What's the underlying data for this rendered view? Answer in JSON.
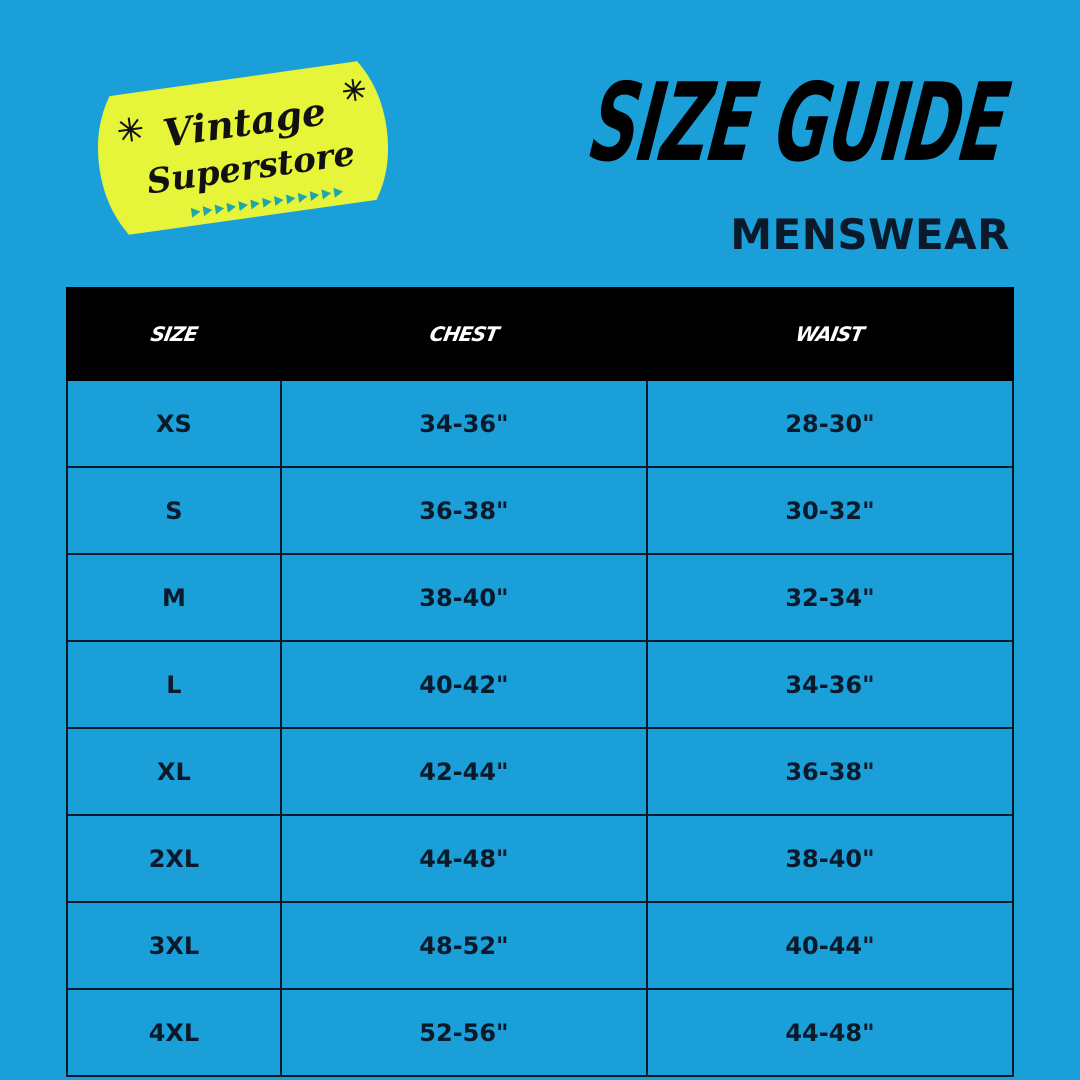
{
  "logo": {
    "text_line1": "Vintage",
    "text_line2": "Superstore",
    "color": "#e6f53a"
  },
  "header": {
    "title": "SIZE GUIDE",
    "subtitle": "MENSWEAR"
  },
  "table": {
    "columns": [
      "SIZE",
      "CHEST",
      "WAIST"
    ],
    "rows": [
      [
        "XS",
        "34-36\"",
        "28-30\""
      ],
      [
        "S",
        "36-38\"",
        "30-32\""
      ],
      [
        "M",
        "38-40\"",
        "32-34\""
      ],
      [
        "L",
        "40-42\"",
        "34-36\""
      ],
      [
        "XL",
        "42-44\"",
        "36-38\""
      ],
      [
        "2XL",
        "44-48\"",
        "38-40\""
      ],
      [
        "3XL",
        "48-52\"",
        "40-44\""
      ],
      [
        "4XL",
        "52-56\"",
        "44-48\""
      ]
    ]
  },
  "colors": {
    "background": "#1a9fd9",
    "header_bg": "#000000",
    "text": "#0b1a2b"
  }
}
